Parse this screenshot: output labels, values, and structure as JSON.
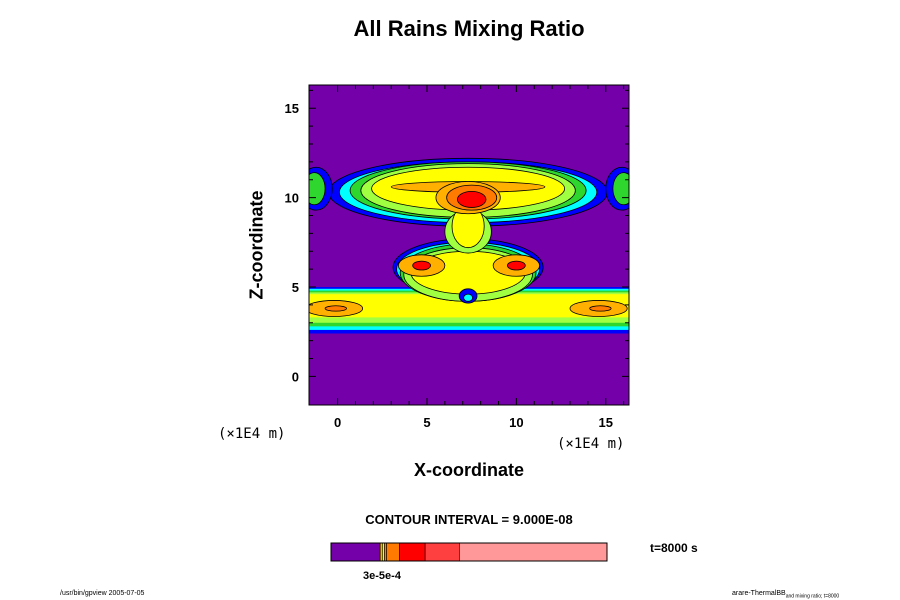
{
  "title": "All Rains Mixing Ratio",
  "y_axis_label": "Z-coordinate",
  "x_axis_label": "X-coordinate",
  "y_unit": "(×1E4 m)",
  "x_unit": "(×1E4 m)",
  "contour_interval": "CONTOUR INTERVAL = 9.000E-08",
  "time_label": "t=8000 s",
  "colorbar_tick_label": "3e-5e-4",
  "footer_left": "/usr/bin/gpview 2005-07-05",
  "footer_right_main": "arare-ThermalBB",
  "footer_right_sub": "and mixing ratio; t=8000",
  "colors": {
    "background_fill": "#7300a8",
    "level_blue_dark": "#0000ff",
    "level_blue": "#0090ff",
    "level_cyan": "#00ffff",
    "level_green": "#2ed62e",
    "level_lightgreen": "#a0ff40",
    "level_yellow": "#ffff00",
    "level_orange": "#ffb000",
    "level_darkorange": "#ff7a00",
    "level_red": "#ff0000",
    "level_lightred": "#ff4040",
    "level_pink": "#ff9999"
  },
  "chart_data": {
    "type": "heatmap",
    "title": "All Rains Mixing Ratio",
    "xlabel": "X-coordinate",
    "ylabel": "Z-coordinate",
    "x_unit": "×1E4 m",
    "y_unit": "×1E4 m",
    "xlim": [
      -1.6,
      16.3
    ],
    "ylim": [
      -1.6,
      16.3
    ],
    "x_ticks": [
      0,
      5,
      10,
      15
    ],
    "y_ticks": [
      0,
      5,
      10,
      15
    ],
    "contour_interval": 9e-08,
    "time_s": 8000,
    "colorbar": [
      {
        "color": "#7300a8",
        "weight": 46
      },
      {
        "color": "#ffb000",
        "weight": 2
      },
      {
        "color": "#ffff00",
        "weight": 2
      },
      {
        "color": "#ff7a00",
        "weight": 2
      },
      {
        "color": "#ff7a00",
        "weight": 12
      },
      {
        "color": "#ff0000",
        "weight": 24
      },
      {
        "color": "#ff4040",
        "weight": 32
      },
      {
        "color": "#ff9999",
        "weight": 138
      }
    ],
    "regions": [
      {
        "level": "background_fill",
        "shape": "rect",
        "x": -1.6,
        "y": -1.6,
        "w": 17.9,
        "h": 17.9
      },
      {
        "level": "level_blue_dark",
        "shape": "rect",
        "x": -1.6,
        "y": 2.4,
        "w": 17.9,
        "h": 2.6
      },
      {
        "level": "level_cyan",
        "shape": "rect",
        "x": -1.6,
        "y": 2.6,
        "w": 17.9,
        "h": 2.3
      },
      {
        "level": "level_green",
        "shape": "rect",
        "x": -1.6,
        "y": 2.8,
        "w": 17.9,
        "h": 2.0
      },
      {
        "level": "level_lightgreen",
        "shape": "rect",
        "x": -1.6,
        "y": 3.0,
        "w": 17.9,
        "h": 1.7
      },
      {
        "level": "level_yellow",
        "shape": "rect",
        "x": -1.6,
        "y": 3.3,
        "w": 17.9,
        "h": 1.3
      },
      {
        "level": "level_orange",
        "shape": "ellipse",
        "cx": -0.2,
        "cy": 3.8,
        "rx": 1.6,
        "ry": 0.45
      },
      {
        "level": "level_orange",
        "shape": "ellipse",
        "cx": 14.6,
        "cy": 3.8,
        "rx": 1.6,
        "ry": 0.45
      },
      {
        "level": "level_darkorange",
        "shape": "ellipse",
        "cx": -0.1,
        "cy": 3.8,
        "rx": 0.6,
        "ry": 0.15
      },
      {
        "level": "level_darkorange",
        "shape": "ellipse",
        "cx": 14.7,
        "cy": 3.8,
        "rx": 0.6,
        "ry": 0.15
      },
      {
        "level": "level_blue_dark",
        "shape": "ellipse",
        "cx": 7.3,
        "cy": 6.1,
        "rx": 4.2,
        "ry": 1.6
      },
      {
        "level": "level_cyan",
        "shape": "ellipse",
        "cx": 7.3,
        "cy": 6.0,
        "rx": 4.0,
        "ry": 1.5
      },
      {
        "level": "level_green",
        "shape": "ellipse",
        "cx": 7.3,
        "cy": 5.8,
        "rx": 3.8,
        "ry": 1.6
      },
      {
        "level": "level_lightgreen",
        "shape": "ellipse",
        "cx": 7.3,
        "cy": 5.7,
        "rx": 3.6,
        "ry": 1.5
      },
      {
        "level": "level_yellow",
        "shape": "ellipse",
        "cx": 7.3,
        "cy": 5.8,
        "rx": 3.2,
        "ry": 1.2
      },
      {
        "level": "level_orange",
        "shape": "ellipse",
        "cx": 4.7,
        "cy": 6.2,
        "rx": 1.3,
        "ry": 0.6
      },
      {
        "level": "level_orange",
        "shape": "ellipse",
        "cx": 10.0,
        "cy": 6.2,
        "rx": 1.3,
        "ry": 0.6
      },
      {
        "level": "level_red",
        "shape": "ellipse",
        "cx": 4.7,
        "cy": 6.2,
        "rx": 0.5,
        "ry": 0.25
      },
      {
        "level": "level_red",
        "shape": "ellipse",
        "cx": 10.0,
        "cy": 6.2,
        "rx": 0.5,
        "ry": 0.25
      },
      {
        "level": "level_blue_dark",
        "shape": "ellipse",
        "cx": 7.3,
        "cy": 4.5,
        "rx": 0.5,
        "ry": 0.4
      },
      {
        "level": "level_cyan",
        "shape": "ellipse",
        "cx": 7.3,
        "cy": 4.4,
        "rx": 0.25,
        "ry": 0.2
      },
      {
        "level": "level_blue_dark",
        "shape": "ellipse",
        "cx": 7.3,
        "cy": 10.3,
        "rx": 7.8,
        "ry": 1.9
      },
      {
        "level": "level_blue_dark",
        "shape": "ellipse",
        "cx": -1.2,
        "cy": 10.5,
        "rx": 0.9,
        "ry": 1.2
      },
      {
        "level": "level_blue_dark",
        "shape": "ellipse",
        "cx": 15.9,
        "cy": 10.5,
        "rx": 0.9,
        "ry": 1.2
      },
      {
        "level": "level_cyan",
        "shape": "ellipse",
        "cx": 7.3,
        "cy": 10.3,
        "rx": 7.2,
        "ry": 1.7
      },
      {
        "level": "level_green",
        "shape": "ellipse",
        "cx": 7.3,
        "cy": 10.4,
        "rx": 6.6,
        "ry": 1.6
      },
      {
        "level": "level_green",
        "shape": "ellipse",
        "cx": -1.3,
        "cy": 10.5,
        "rx": 0.6,
        "ry": 0.9
      },
      {
        "level": "level_green",
        "shape": "ellipse",
        "cx": 16.0,
        "cy": 10.5,
        "rx": 0.6,
        "ry": 0.9
      },
      {
        "level": "level_lightgreen",
        "shape": "ellipse",
        "cx": 7.3,
        "cy": 10.4,
        "rx": 6.0,
        "ry": 1.5
      },
      {
        "level": "level_yellow",
        "shape": "ellipse",
        "cx": 7.3,
        "cy": 10.5,
        "rx": 5.4,
        "ry": 1.2
      },
      {
        "level": "level_lightgreen",
        "shape": "ellipse",
        "cx": 7.3,
        "cy": 8.1,
        "rx": 1.3,
        "ry": 1.2
      },
      {
        "level": "level_yellow",
        "shape": "ellipse",
        "cx": 7.3,
        "cy": 8.4,
        "rx": 0.9,
        "ry": 1.2
      },
      {
        "level": "level_orange",
        "shape": "ellipse",
        "cx": 7.3,
        "cy": 10.6,
        "rx": 4.3,
        "ry": 0.3
      },
      {
        "level": "level_orange",
        "shape": "ellipse",
        "cx": 7.3,
        "cy": 10.0,
        "rx": 1.8,
        "ry": 0.9
      },
      {
        "level": "level_darkorange",
        "shape": "ellipse",
        "cx": 7.5,
        "cy": 10.0,
        "rx": 1.4,
        "ry": 0.7
      },
      {
        "level": "level_red",
        "shape": "ellipse",
        "cx": 7.5,
        "cy": 9.9,
        "rx": 0.8,
        "ry": 0.45
      }
    ]
  }
}
